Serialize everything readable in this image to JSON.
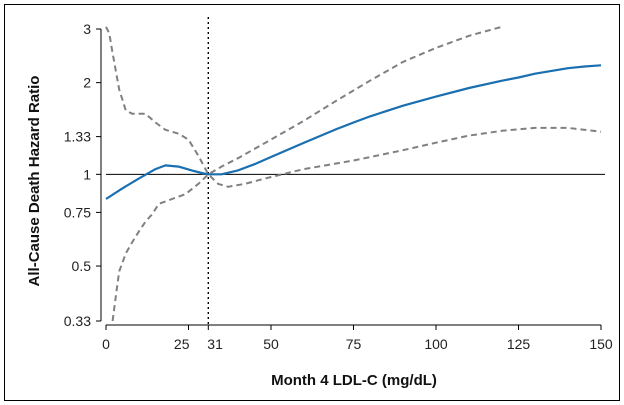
{
  "chart_data": {
    "type": "line",
    "xlabel": "Month 4 LDL-C (mg/dL)",
    "ylabel": "All-Cause Death Hazard Ratio",
    "y_scale": "log",
    "xlim": [
      0,
      150
    ],
    "ylim": [
      0.33,
      3
    ],
    "x_ticks": [
      {
        "value": 0,
        "label": "0"
      },
      {
        "value": 25,
        "label": "25"
      },
      {
        "value": 31,
        "label": "31"
      },
      {
        "value": 50,
        "label": "50"
      },
      {
        "value": 75,
        "label": "75"
      },
      {
        "value": 100,
        "label": "100"
      },
      {
        "value": 125,
        "label": "125"
      },
      {
        "value": 150,
        "label": "150"
      }
    ],
    "y_ticks": [
      {
        "value": 0.33,
        "label": "0.33"
      },
      {
        "value": 0.5,
        "label": "0.5"
      },
      {
        "value": 0.75,
        "label": "0.75"
      },
      {
        "value": 1,
        "label": "1"
      },
      {
        "value": 1.33,
        "label": "1.33"
      },
      {
        "value": 2,
        "label": "2"
      },
      {
        "value": 3,
        "label": "3"
      }
    ],
    "reference_line_y": 1,
    "vertical_line_x": 31,
    "series": [
      {
        "role": "estimate",
        "color": "#1a6fb0",
        "style": "solid",
        "points": [
          [
            0,
            0.83
          ],
          [
            5,
            0.9
          ],
          [
            10,
            0.97
          ],
          [
            15,
            1.04
          ],
          [
            18,
            1.07
          ],
          [
            22,
            1.06
          ],
          [
            26,
            1.03
          ],
          [
            29,
            1.01
          ],
          [
            31,
            1.0
          ],
          [
            35,
            1.0
          ],
          [
            40,
            1.03
          ],
          [
            45,
            1.08
          ],
          [
            50,
            1.14
          ],
          [
            60,
            1.27
          ],
          [
            70,
            1.41
          ],
          [
            75,
            1.48
          ],
          [
            80,
            1.55
          ],
          [
            90,
            1.68
          ],
          [
            100,
            1.8
          ],
          [
            110,
            1.92
          ],
          [
            120,
            2.03
          ],
          [
            125,
            2.08
          ],
          [
            130,
            2.14
          ],
          [
            140,
            2.23
          ],
          [
            145,
            2.26
          ],
          [
            150,
            2.28
          ]
        ]
      },
      {
        "role": "upper-ci",
        "color": "#808080",
        "style": "dashed",
        "points": [
          [
            0,
            3.05
          ],
          [
            1,
            2.9
          ],
          [
            2,
            2.5
          ],
          [
            4,
            1.9
          ],
          [
            6,
            1.62
          ],
          [
            8,
            1.58
          ],
          [
            12,
            1.58
          ],
          [
            15,
            1.48
          ],
          [
            18,
            1.4
          ],
          [
            22,
            1.36
          ],
          [
            25,
            1.3
          ],
          [
            28,
            1.15
          ],
          [
            31,
            1.0
          ],
          [
            35,
            1.06
          ],
          [
            40,
            1.13
          ],
          [
            50,
            1.3
          ],
          [
            60,
            1.5
          ],
          [
            70,
            1.75
          ],
          [
            80,
            2.03
          ],
          [
            90,
            2.34
          ],
          [
            100,
            2.6
          ],
          [
            110,
            2.85
          ],
          [
            120,
            3.05
          ]
        ]
      },
      {
        "role": "lower-ci",
        "color": "#808080",
        "style": "dashed",
        "points": [
          [
            2,
            0.33
          ],
          [
            3,
            0.4
          ],
          [
            4,
            0.48
          ],
          [
            6,
            0.55
          ],
          [
            8,
            0.6
          ],
          [
            10,
            0.65
          ],
          [
            12,
            0.7
          ],
          [
            14,
            0.74
          ],
          [
            16,
            0.8
          ],
          [
            20,
            0.83
          ],
          [
            24,
            0.86
          ],
          [
            28,
            0.93
          ],
          [
            31,
            1.0
          ],
          [
            34,
            0.93
          ],
          [
            37,
            0.91
          ],
          [
            42,
            0.93
          ],
          [
            50,
            0.98
          ],
          [
            60,
            1.04
          ],
          [
            75,
            1.11
          ],
          [
            90,
            1.2
          ],
          [
            100,
            1.27
          ],
          [
            110,
            1.34
          ],
          [
            120,
            1.39
          ],
          [
            130,
            1.42
          ],
          [
            140,
            1.42
          ],
          [
            150,
            1.38
          ]
        ]
      }
    ]
  }
}
